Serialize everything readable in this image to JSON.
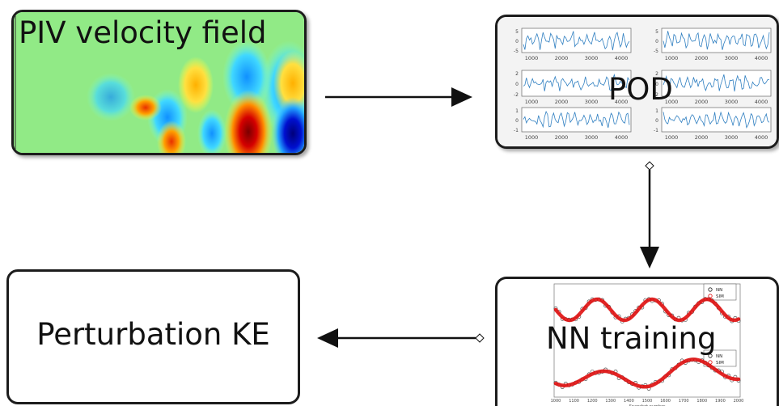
{
  "boxes": {
    "piv": {
      "label": "PIV velocity field"
    },
    "pod": {
      "label": "POD"
    },
    "nn": {
      "label": "NN training"
    },
    "ke": {
      "label": "Perturbation KE"
    }
  },
  "pod_plot": {
    "panels": [
      {
        "ticks_x": [
          "1000",
          "2000",
          "3000",
          "4000"
        ],
        "ticks_y": [
          "5",
          "0",
          "-5"
        ]
      },
      {
        "ticks_x": [
          "1000",
          "2000",
          "3000",
          "4000"
        ],
        "ticks_y": [
          "5",
          "0",
          "-5"
        ]
      },
      {
        "ticks_x": [
          "1000",
          "2000",
          "3000",
          "4000"
        ],
        "ticks_y": [
          "2",
          "0",
          "-2"
        ]
      },
      {
        "ticks_x": [
          "1000",
          "2000",
          "3000",
          "4000"
        ],
        "ticks_y": [
          "2",
          "0",
          "-2"
        ]
      },
      {
        "ticks_x": [
          "1000",
          "2000",
          "3000",
          "4000"
        ],
        "ticks_y": [
          "1",
          "0",
          "-1"
        ]
      },
      {
        "ticks_x": [
          "1000",
          "2000",
          "3000",
          "4000"
        ],
        "ticks_y": [
          "1",
          "0",
          "-1"
        ]
      }
    ]
  },
  "nn_plot": {
    "legend": [
      "NN",
      "SIM"
    ],
    "ticks_x": [
      "1000",
      "1100",
      "1200",
      "1300",
      "1400",
      "1500",
      "1600",
      "1700",
      "1800",
      "1900",
      "2000"
    ],
    "xlabel": "Snapshot number"
  },
  "colors": {
    "line_blue": "#2f7fc1",
    "sim_red": "#e01010",
    "border": "#1c1c1c"
  }
}
